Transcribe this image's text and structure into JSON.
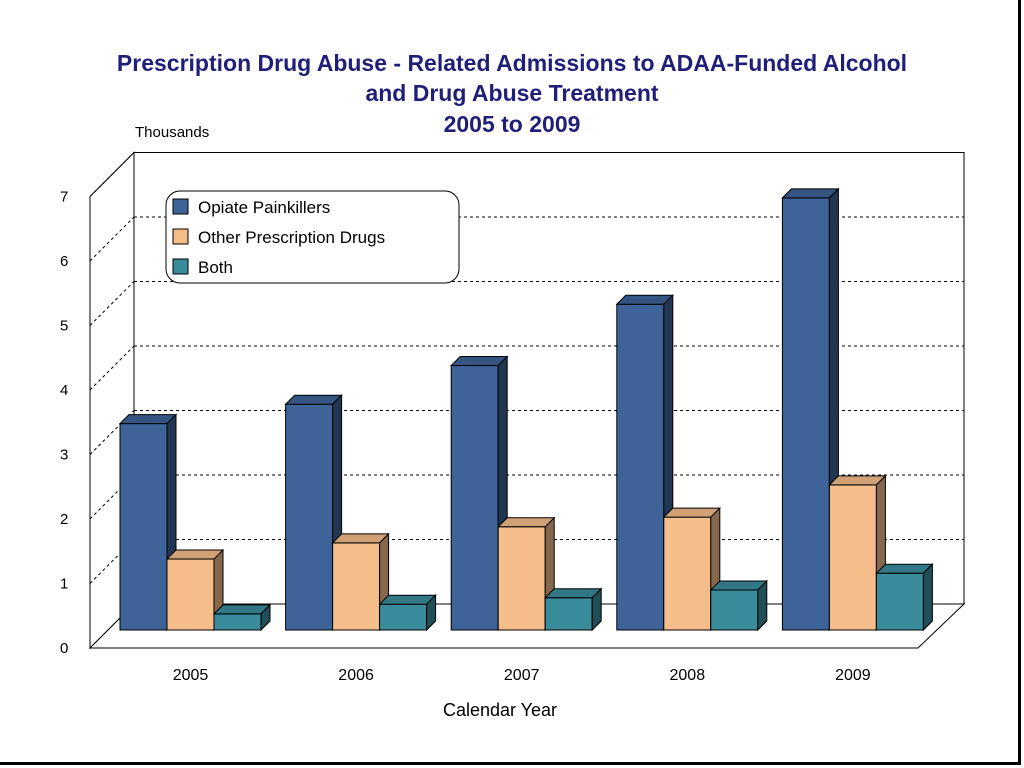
{
  "chart_data": {
    "type": "bar",
    "title": "Prescription Drug Abuse - Related Admissions to ADAA-Funded Alcohol and Drug Abuse Treatment 2005 to 2009",
    "title_lines": [
      "Prescription Drug Abuse - Related Admissions to ADAA-Funded Alcohol",
      "and Drug Abuse Treatment",
      "2005 to 2009"
    ],
    "unit_label": "Thousands",
    "xlabel": "Calendar Year",
    "ylabel": "Thousands",
    "ylim": [
      0,
      7
    ],
    "yticks": [
      "0",
      "1",
      "2",
      "3",
      "4",
      "5",
      "6",
      "7"
    ],
    "categories": [
      "2005",
      "2006",
      "2007",
      "2008",
      "2009"
    ],
    "series": [
      {
        "name": "Opiate Painkillers",
        "color": "#3d6399",
        "values": [
          3.2,
          3.5,
          4.1,
          5.05,
          6.7
        ]
      },
      {
        "name": "Other Prescription Drugs",
        "color": "#f5bd8a",
        "values": [
          1.1,
          1.35,
          1.6,
          1.75,
          2.25
        ]
      },
      {
        "name": "Both",
        "color": "#3a8c9c",
        "values": [
          0.25,
          0.4,
          0.5,
          0.62,
          0.88
        ]
      }
    ],
    "grid": true,
    "legend_position": "top-left"
  }
}
